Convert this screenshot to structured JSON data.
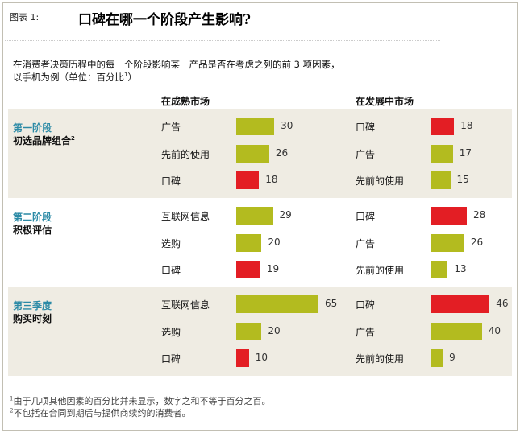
{
  "figure_label": "图表 1:",
  "title": "口碑在哪一个阶段产生影响?",
  "subtitle_line1": "在消费者决策历程中的每一个阶段影响某一产品是否在考虑之列的前 3 项因素，",
  "subtitle_line2": "以手机为例（单位：百分比",
  "subtitle_sup": "1",
  "subtitle_end": "）",
  "footnotes": [
    {
      "mark": "1",
      "text": "由于几项其他因素的百分比并未显示，数字之和不等于百分之百。"
    },
    {
      "mark": "2",
      "text": "不包括在合同到期后与提供商续约的消费者。"
    }
  ],
  "colors": {
    "word_of_mouth": "#e31e24",
    "other": "#b3bb1f",
    "stage_title": "#2b8aa6",
    "band": "#efece3"
  },
  "chart_data": {
    "type": "bar",
    "orientation": "horizontal",
    "unit": "百分比",
    "columns": [
      "在成熟市场",
      "在发展中市场"
    ],
    "stages": [
      {
        "title": "第一阶段",
        "subtitle": "初选品牌组合",
        "sup": "2",
        "shaded": true,
        "mature": [
          {
            "label": "广告",
            "value": 30,
            "highlight": false
          },
          {
            "label": "先前的使用",
            "value": 26,
            "highlight": false
          },
          {
            "label": "口碑",
            "value": 18,
            "highlight": true
          }
        ],
        "developing": [
          {
            "label": "口碑",
            "value": 18,
            "highlight": true
          },
          {
            "label": "广告",
            "value": 17,
            "highlight": false
          },
          {
            "label": "先前的使用",
            "value": 15,
            "highlight": false
          }
        ]
      },
      {
        "title": "第二阶段",
        "subtitle": "积极评估",
        "sup": "",
        "shaded": false,
        "mature": [
          {
            "label": "互联网信息",
            "value": 29,
            "highlight": false
          },
          {
            "label": "选购",
            "value": 20,
            "highlight": false
          },
          {
            "label": "口碑",
            "value": 19,
            "highlight": true
          }
        ],
        "developing": [
          {
            "label": "口碑",
            "value": 28,
            "highlight": true
          },
          {
            "label": "广告",
            "value": 26,
            "highlight": false
          },
          {
            "label": "先前的使用",
            "value": 13,
            "highlight": false
          }
        ]
      },
      {
        "title": "第三季度",
        "subtitle": "购买时刻",
        "sup": "",
        "shaded": true,
        "mature": [
          {
            "label": "互联网信息",
            "value": 65,
            "highlight": false
          },
          {
            "label": "选购",
            "value": 20,
            "highlight": false
          },
          {
            "label": "口碑",
            "value": 10,
            "highlight": true
          }
        ],
        "developing": [
          {
            "label": "口碑",
            "value": 46,
            "highlight": true
          },
          {
            "label": "广告",
            "value": 40,
            "highlight": false
          },
          {
            "label": "先前的使用",
            "value": 9,
            "highlight": false
          }
        ]
      }
    ]
  }
}
